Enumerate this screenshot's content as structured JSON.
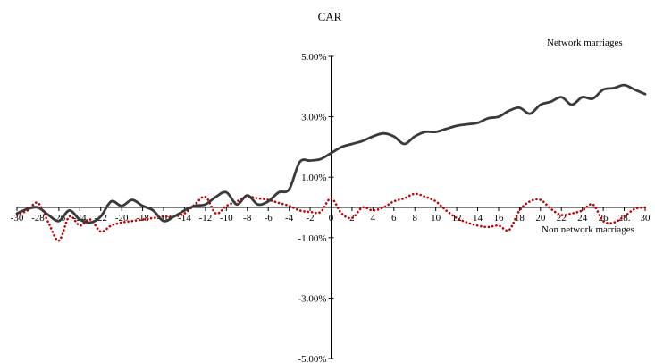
{
  "chart_data": {
    "type": "line",
    "title": "CAR",
    "xlabel": "",
    "ylabel": "",
    "xlim": [
      -30,
      30
    ],
    "ylim": [
      -5,
      5
    ],
    "x_ticks": [
      -30,
      -28,
      -26,
      -24,
      -22,
      -20,
      -18,
      -16,
      -14,
      -12,
      -10,
      -8,
      -6,
      -4,
      -2,
      0,
      2,
      4,
      6,
      8,
      10,
      12,
      14,
      16,
      18,
      20,
      22,
      24,
      26,
      28,
      30
    ],
    "x_tick_labels": [
      "-30",
      "-28",
      "-26",
      "-24",
      "-22",
      "-20",
      "-18",
      "-16",
      "-14",
      "-12",
      "-10",
      "-8",
      "-6",
      "-4",
      "-2",
      "0",
      "2",
      "4",
      "6",
      "8",
      "10",
      "12",
      "14",
      "16",
      "18",
      "20",
      "22",
      "24",
      "26",
      "28.",
      "30"
    ],
    "y_ticks": [
      -5,
      -3,
      -1,
      1,
      3,
      5
    ],
    "y_tick_labels": [
      "-5.00%",
      "-3.00%",
      "-1.00%",
      "1.00%",
      "3.00%",
      "5.00%"
    ],
    "x": [
      -30,
      -29,
      -28,
      -27,
      -26,
      -25,
      -24,
      -23,
      -22,
      -21,
      -20,
      -19,
      -18,
      -17,
      -16,
      -15,
      -14,
      -13,
      -12,
      -11,
      -10,
      -9,
      -8,
      -7,
      -6,
      -5,
      -4,
      -3,
      -2,
      -1,
      0,
      1,
      2,
      3,
      4,
      5,
      6,
      7,
      8,
      9,
      10,
      11,
      12,
      13,
      14,
      15,
      16,
      17,
      18,
      19,
      20,
      21,
      22,
      23,
      24,
      25,
      26,
      27,
      28,
      29,
      30
    ],
    "series": [
      {
        "name": "Network marriages",
        "color": "#3a3a3a",
        "style": "solid",
        "values": [
          -0.2,
          -0.05,
          0.0,
          -0.25,
          -0.45,
          -0.1,
          -0.4,
          -0.5,
          -0.3,
          0.2,
          0.05,
          0.25,
          0.05,
          -0.1,
          -0.45,
          -0.3,
          -0.1,
          0.05,
          0.1,
          0.35,
          0.5,
          0.1,
          0.4,
          0.1,
          0.2,
          0.5,
          0.6,
          1.5,
          1.55,
          1.6,
          1.8,
          2.0,
          2.1,
          2.2,
          2.35,
          2.45,
          2.35,
          2.1,
          2.35,
          2.5,
          2.5,
          2.6,
          2.7,
          2.75,
          2.8,
          2.95,
          3.0,
          3.2,
          3.3,
          3.1,
          3.4,
          3.5,
          3.65,
          3.4,
          3.65,
          3.6,
          3.9,
          3.95,
          4.05,
          3.9,
          3.75
        ]
      },
      {
        "name": "Non network marriages",
        "color": "#c00000",
        "style": "dotted",
        "values": [
          -0.25,
          -0.1,
          0.15,
          -0.5,
          -1.1,
          -0.3,
          -0.6,
          -0.4,
          -0.8,
          -0.6,
          -0.5,
          -0.45,
          -0.4,
          -0.35,
          -0.3,
          -0.3,
          -0.2,
          0.1,
          0.35,
          -0.2,
          0.05,
          0.2,
          0.35,
          0.3,
          0.25,
          0.15,
          0.05,
          -0.1,
          -0.15,
          -0.15,
          0.3,
          -0.2,
          -0.35,
          0.0,
          -0.1,
          0.0,
          0.2,
          0.3,
          0.45,
          0.35,
          0.2,
          -0.1,
          -0.35,
          -0.5,
          -0.6,
          -0.65,
          -0.6,
          -0.75,
          -0.1,
          0.2,
          0.25,
          -0.05,
          -0.25,
          -0.2,
          -0.1,
          0.1,
          -0.45,
          -0.5,
          -0.3,
          -0.05,
          0.0
        ]
      }
    ],
    "legend": "inline labels near series ends",
    "grid": false
  }
}
